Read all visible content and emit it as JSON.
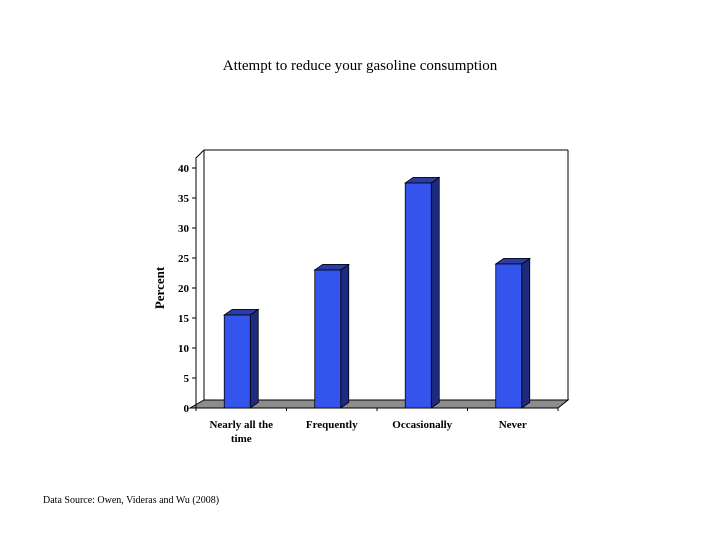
{
  "chart_data": {
    "type": "bar",
    "title": "Attempt to reduce your gasoline consumption",
    "xlabel": "",
    "ylabel": "Percent",
    "ylim": [
      0,
      40
    ],
    "yticks": [
      "0",
      "5",
      "10",
      "15",
      "20",
      "25",
      "30",
      "35",
      "40"
    ],
    "categories": [
      [
        "Nearly all the",
        "time"
      ],
      [
        "Frequently"
      ],
      [
        "Occasionally"
      ],
      [
        "Never"
      ]
    ],
    "values": [
      15.5,
      23,
      37.5,
      24
    ],
    "bar_color": "#3355ee",
    "grid": false,
    "style": "3d"
  },
  "source": "Data Source: Owen, Videras and Wu (2008)"
}
